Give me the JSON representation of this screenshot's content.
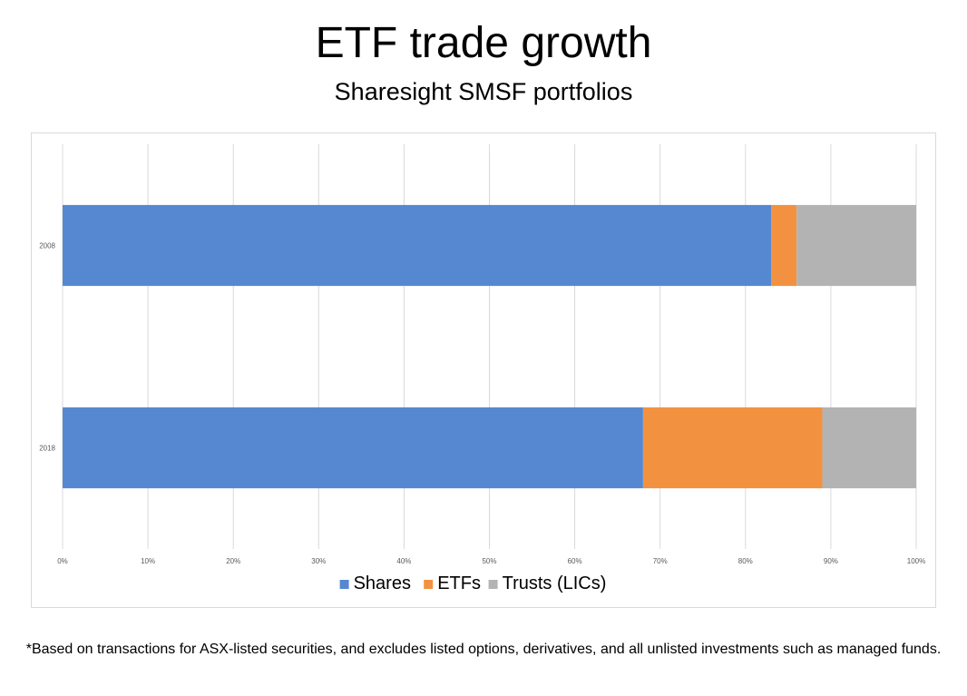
{
  "title": "ETF trade growth",
  "subtitle": "Sharesight SMSF portfolios",
  "footnote": "*Based on transactions for ASX-listed securities, and excludes listed options, derivatives, and all unlisted investments such as managed funds.",
  "chart_data": {
    "type": "bar",
    "orientation": "horizontal",
    "stacking": "percent",
    "categories": [
      "2008",
      "2018"
    ],
    "series": [
      {
        "name": "Shares",
        "color": "#5588d1",
        "values": [
          83,
          68
        ]
      },
      {
        "name": "ETFs",
        "color": "#f29240",
        "values": [
          3,
          21
        ]
      },
      {
        "name": "Trusts (LICs)",
        "color": "#b3b3b3",
        "values": [
          14,
          11
        ]
      }
    ],
    "x_ticks": [
      "0%",
      "10%",
      "20%",
      "30%",
      "40%",
      "50%",
      "60%",
      "70%",
      "80%",
      "90%",
      "100%"
    ],
    "xlim": [
      0,
      100
    ],
    "grid": true,
    "legend_position": "bottom"
  }
}
